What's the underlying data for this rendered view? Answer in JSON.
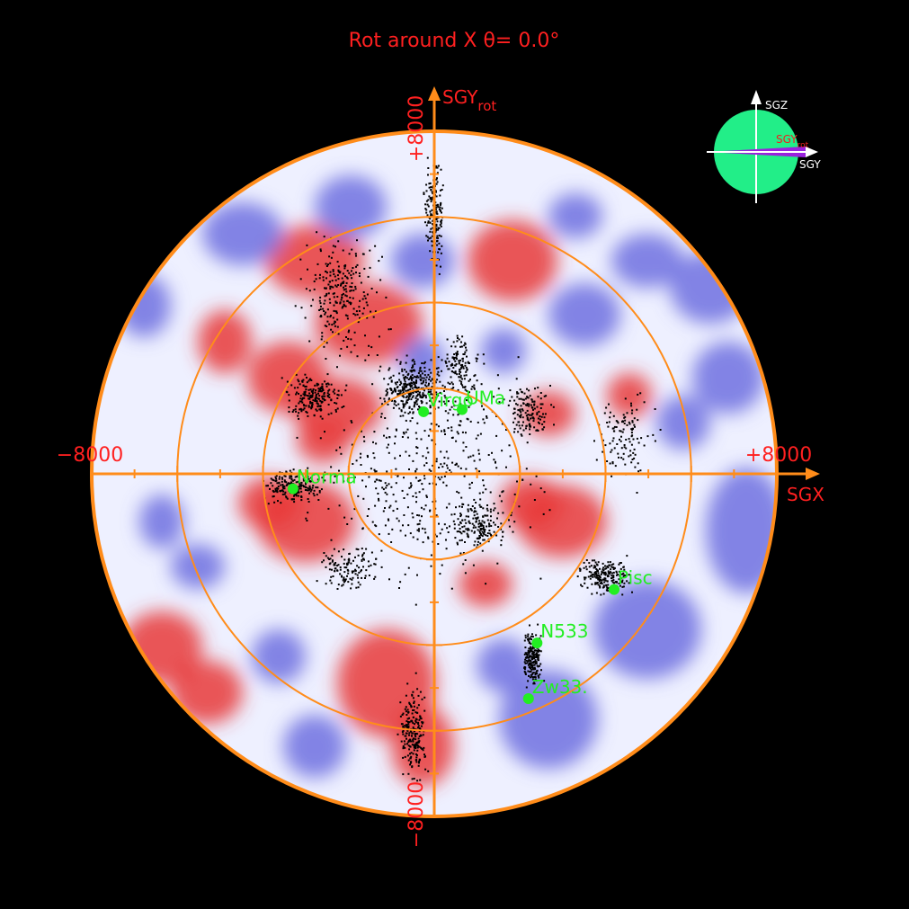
{
  "title": "Rot around X  θ=  0.0°",
  "axes": {
    "x_label": "SGX",
    "y_label_main": "SGY",
    "y_label_sub": "rot",
    "x_min_label": "−8000",
    "x_max_label": "+8000",
    "y_max_label": "+8000",
    "y_min_label": "−8000"
  },
  "inset": {
    "z_label": "SGZ",
    "yrot_label_main": "SGY",
    "yrot_label_sub": "rot",
    "y_label": "SGY"
  },
  "colors": {
    "background": "#000000",
    "axis": "#ff8c1a",
    "label": "#ff2020",
    "cluster": "#22ee22",
    "positive": "#e8383a",
    "negative": "#6e70e0",
    "inset_globe": "#22ee88"
  },
  "chart_data": {
    "type": "scatter",
    "title": "Rot around X  θ=  0.0°",
    "xlabel": "SGX",
    "ylabel": "SGYrot",
    "xlim": [
      -8000,
      8000
    ],
    "ylim": [
      -8000,
      8000
    ],
    "rings_at": [
      2000,
      4000,
      6000,
      8000
    ],
    "clusters": [
      {
        "name": "Virgo",
        "x": -250,
        "y": 1450
      },
      {
        "name": "UMa",
        "x": 650,
        "y": 1500
      },
      {
        "name": "Norma",
        "x": -3300,
        "y": -350
      },
      {
        "name": "Pisc",
        "x": 4200,
        "y": -2700
      },
      {
        "name": "N533",
        "x": 2400,
        "y": -3950
      },
      {
        "name": "Zw33.",
        "x": 2200,
        "y": -5250
      }
    ]
  }
}
